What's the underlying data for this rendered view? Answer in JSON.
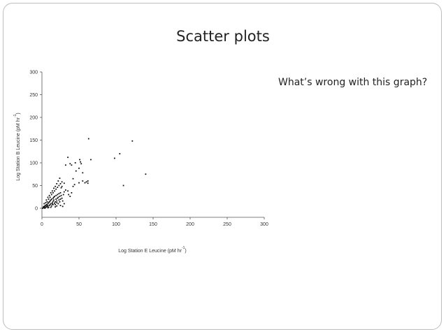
{
  "slide": {
    "title": "Scatter plots",
    "question": "What’s wrong with this graph?"
  },
  "chart_data": {
    "type": "scatter",
    "xlabel": "Log Station E Leucine (pM hr",
    "xlabel_sup": "-1",
    "xlabel_close": ")",
    "ylabel": "Log Station B Leucine (pM hr",
    "ylabel_sup": "-1",
    "ylabel_close": ")",
    "xlim": [
      0,
      300
    ],
    "ylim": [
      -20,
      300
    ],
    "xticks": [
      0,
      50,
      100,
      150,
      200,
      250,
      300
    ],
    "yticks": [
      0,
      50,
      100,
      150,
      200,
      250,
      300
    ],
    "grid": false,
    "series": [
      {
        "points": [
          [
            1,
            0
          ],
          [
            2,
            1
          ],
          [
            3,
            2
          ],
          [
            2,
            3
          ],
          [
            4,
            1
          ],
          [
            3,
            4
          ],
          [
            5,
            2
          ],
          [
            4,
            5
          ],
          [
            6,
            3
          ],
          [
            5,
            6
          ],
          [
            7,
            4
          ],
          [
            6,
            8
          ],
          [
            8,
            5
          ],
          [
            7,
            7
          ],
          [
            9,
            2
          ],
          [
            8,
            10
          ],
          [
            10,
            6
          ],
          [
            9,
            12
          ],
          [
            11,
            8
          ],
          [
            10,
            14
          ],
          [
            12,
            10
          ],
          [
            11,
            16
          ],
          [
            13,
            5
          ],
          [
            12,
            18
          ],
          [
            14,
            12
          ],
          [
            13,
            20
          ],
          [
            15,
            15
          ],
          [
            14,
            9
          ],
          [
            16,
            18
          ],
          [
            15,
            22
          ],
          [
            17,
            11
          ],
          [
            16,
            24
          ],
          [
            18,
            14
          ],
          [
            17,
            26
          ],
          [
            19,
            20
          ],
          [
            18,
            8
          ],
          [
            20,
            16
          ],
          [
            19,
            28
          ],
          [
            21,
            22
          ],
          [
            20,
            12
          ],
          [
            22,
            24
          ],
          [
            21,
            30
          ],
          [
            23,
            18
          ],
          [
            22,
            10
          ],
          [
            24,
            26
          ],
          [
            23,
            32
          ],
          [
            25,
            20
          ],
          [
            24,
            14
          ],
          [
            26,
            28
          ],
          [
            25,
            34
          ],
          [
            27,
            22
          ],
          [
            28,
            16
          ],
          [
            29,
            30
          ],
          [
            30,
            36
          ],
          [
            3,
            10
          ],
          [
            5,
            12
          ],
          [
            7,
            14
          ],
          [
            9,
            20
          ],
          [
            11,
            24
          ],
          [
            13,
            30
          ],
          [
            15,
            34
          ],
          [
            17,
            38
          ],
          [
            19,
            42
          ],
          [
            21,
            46
          ],
          [
            23,
            50
          ],
          [
            25,
            54
          ],
          [
            27,
            58
          ],
          [
            6,
            18
          ],
          [
            8,
            24
          ],
          [
            10,
            28
          ],
          [
            12,
            34
          ],
          [
            14,
            38
          ],
          [
            16,
            44
          ],
          [
            18,
            48
          ],
          [
            20,
            54
          ],
          [
            22,
            60
          ],
          [
            24,
            66
          ],
          [
            15,
            8
          ],
          [
            20,
            5
          ],
          [
            25,
            6
          ],
          [
            30,
            10
          ],
          [
            28,
            4
          ],
          [
            18,
            3
          ],
          [
            12,
            2
          ],
          [
            8,
            1
          ],
          [
            4,
            0
          ],
          [
            32,
            40
          ],
          [
            35,
            38
          ],
          [
            36,
            30
          ],
          [
            38,
            26
          ],
          [
            40,
            34
          ],
          [
            42,
            48
          ],
          [
            44,
            52
          ],
          [
            30,
            55
          ],
          [
            27,
            48
          ],
          [
            26,
            45
          ],
          [
            35,
            112
          ],
          [
            38,
            98
          ],
          [
            40,
            95
          ],
          [
            46,
            82
          ],
          [
            50,
            88
          ],
          [
            51,
            107
          ],
          [
            52,
            102
          ],
          [
            53,
            98
          ],
          [
            55,
            78
          ],
          [
            55,
            60
          ],
          [
            58,
            56
          ],
          [
            60,
            58
          ],
          [
            62,
            55
          ],
          [
            62,
            60
          ],
          [
            45,
            100
          ],
          [
            32,
            95
          ],
          [
            66,
            107
          ],
          [
            63,
            153
          ],
          [
            98,
            110
          ],
          [
            105,
            120
          ],
          [
            110,
            50
          ],
          [
            122,
            148
          ],
          [
            140,
            75
          ],
          [
            50,
            56
          ],
          [
            42,
            65
          ]
        ]
      }
    ]
  }
}
